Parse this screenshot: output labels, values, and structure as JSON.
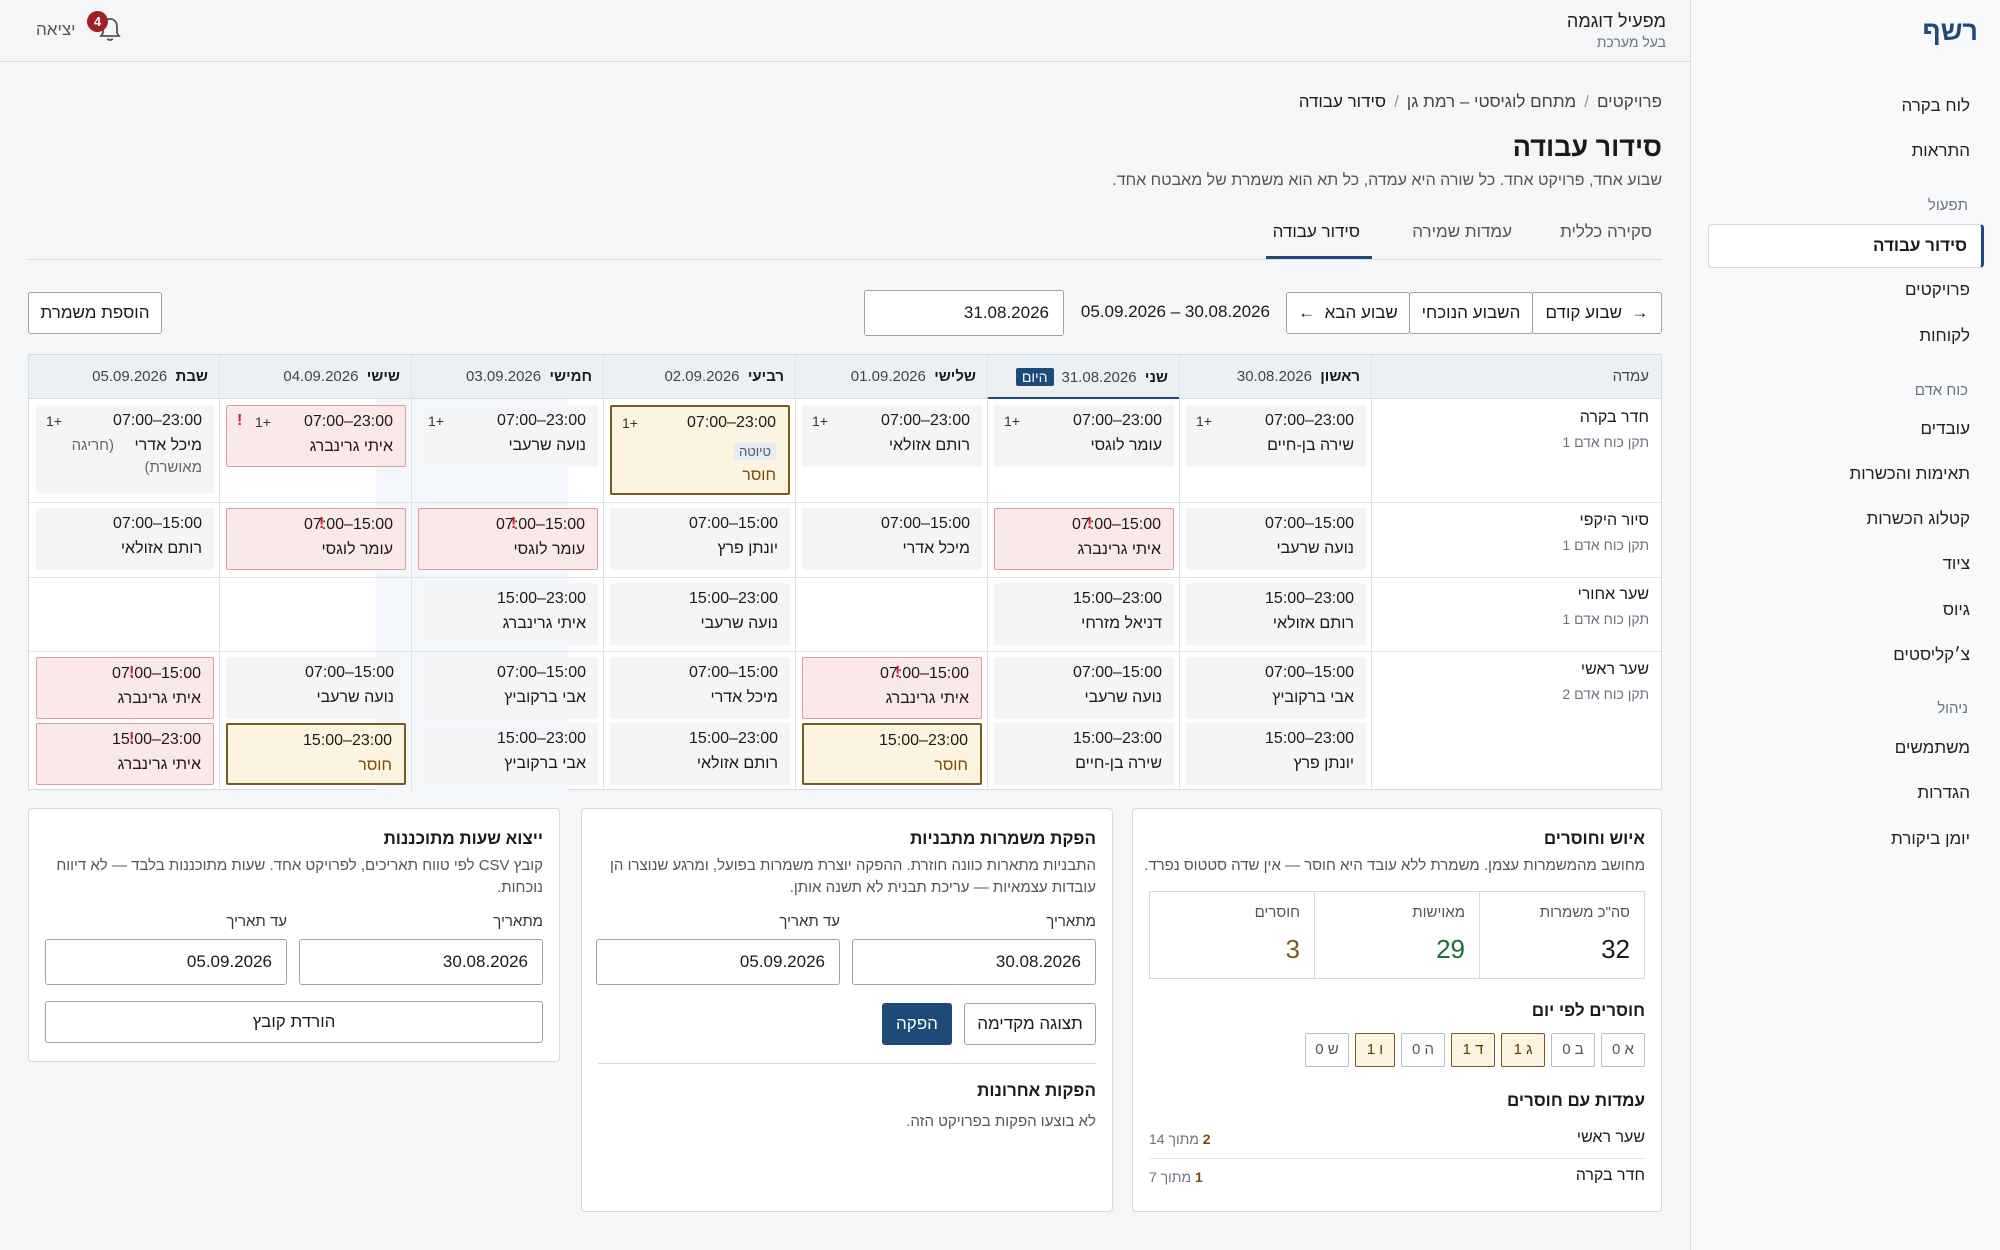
{
  "app": {
    "logo": "רשף"
  },
  "sidebar": {
    "top_items": [
      "לוח בקרה",
      "התראות"
    ],
    "groups": {
      "operations": "תפעול",
      "manpower": "כוח אדם",
      "management": "ניהול"
    },
    "operations_items": [
      "סידור עבודה",
      "פרויקטים",
      "לקוחות"
    ],
    "manpower_items": [
      "עובדים",
      "תאימות והכשרות",
      "קטלוג הכשרות",
      "ציוד",
      "גיוס",
      "צ׳קליסטים"
    ],
    "management_items": [
      "משתמשים",
      "הגדרות",
      "יומן ביקורת"
    ],
    "active_item": "סידור עבודה"
  },
  "header": {
    "user_name": "מפעיל דוגמה",
    "user_role": "בעל מערכת",
    "logout": "יציאה",
    "notification_count": "4"
  },
  "breadcrumb": {
    "items": [
      "פרויקטים",
      "מתחם לוגיסטי – רמת גן",
      "סידור עבודה"
    ],
    "separator": "/"
  },
  "page": {
    "title": "סידור עבודה",
    "subtitle": "שבוע אחד, פרויקט אחד. כל שורה היא עמדה, כל תא הוא משמרת של מאבטח אחד."
  },
  "tabs": [
    "סקירה כללית",
    "עמדות שמירה",
    "סידור עבודה"
  ],
  "toolbar": {
    "prev_week": "שבוע קודם",
    "current_week": "השבוע הנוכחי",
    "next_week": "שבוע הבא",
    "prev_arrow": "→",
    "next_arrow": "←",
    "range": "30.08.2026 – 05.09.2026",
    "date_value": "31.08.2026",
    "add_shift": "הוספת משמרת"
  },
  "schedule": {
    "station_header": "עמדה",
    "today_label": "היום",
    "days": [
      {
        "name": "ראשון",
        "date": "30.08.2026"
      },
      {
        "name": "שני",
        "date": "31.08.2026"
      },
      {
        "name": "שלישי",
        "date": "01.09.2026"
      },
      {
        "name": "רביעי",
        "date": "02.09.2026"
      },
      {
        "name": "חמישי",
        "date": "03.09.2026"
      },
      {
        "name": "שישי",
        "date": "04.09.2026"
      },
      {
        "name": "שבת",
        "date": "05.09.2026"
      }
    ],
    "stations": [
      {
        "name": "חדר בקרה",
        "req": "תקן כוח אדם 1"
      },
      {
        "name": "סיור היקפי",
        "req": "תקן כוח אדם 1"
      },
      {
        "name": "שער אחורי",
        "req": "תקן כוח אדם 1"
      },
      {
        "name": "שער ראשי",
        "req": "תקן כוח אדם 2"
      }
    ],
    "plus_one": "+1",
    "alert_mark": "!",
    "missing_label": "חוסר",
    "draft_label": "טיוטה",
    "cells": {
      "r0": [
        {
          "time": "07:00–23:00",
          "name": "שירה בן-חיים"
        },
        {
          "time": "07:00–23:00",
          "name": "עומר לוגסי"
        },
        {
          "time": "07:00–23:00",
          "name": "רותם אזולאי"
        },
        {
          "time": "07:00–23:00"
        },
        {
          "time": "07:00–23:00",
          "name": "נועה שרעבי"
        },
        {
          "time": "07:00–23:00",
          "name": "איתי גרינברג"
        },
        {
          "time": "07:00–23:00",
          "name": "מיכל אדרי",
          "note": "(חריגה",
          "note2": "מאושרת)"
        }
      ],
      "r1": [
        {
          "time": "07:00–15:00",
          "name": "נועה שרעבי"
        },
        {
          "time": "07:00–15:00",
          "name": "איתי גרינברג"
        },
        {
          "time": "07:00–15:00",
          "name": "מיכל אדרי"
        },
        {
          "time": "07:00–15:00",
          "name": "יונתן פרץ"
        },
        {
          "time": "07:00–15:00",
          "name": "עומר לוגסי"
        },
        {
          "time": "07:00–15:00",
          "name": "עומר לוגסי"
        },
        {
          "time": "07:00–15:00",
          "name": "רותם אזולאי"
        }
      ],
      "r2": [
        {
          "time": "15:00–23:00",
          "name": "רותם אזולאי"
        },
        {
          "time": "15:00–23:00",
          "name": "דניאל מזרחי"
        },
        {
          "time": "15:00–23:00",
          "name": "נועה שרעבי"
        },
        {
          "time": "15:00–23:00",
          "name": "איתי גרינברג"
        }
      ],
      "r3a": [
        {
          "time": "07:00–15:00",
          "name": "אבי ברקוביץ"
        },
        {
          "time": "07:00–15:00",
          "name": "נועה שרעבי"
        },
        {
          "time": "07:00–15:00",
          "name": "איתי גרינברג"
        },
        {
          "time": "07:00–15:00",
          "name": "מיכל אדרי"
        },
        {
          "time": "07:00–15:00",
          "name": "אבי ברקוביץ"
        },
        {
          "time": "07:00–15:00",
          "name": "נועה שרעבי"
        },
        {
          "time": "07:00–15:00",
          "name": "איתי גרינברג"
        }
      ],
      "r3b": [
        {
          "time": "15:00–23:00",
          "name": "יונתן פרץ"
        },
        {
          "time": "15:00–23:00",
          "name": "שירה בן-חיים"
        },
        {
          "time": "15:00–23:00"
        },
        {
          "time": "15:00–23:00",
          "name": "רותם אזולאי"
        },
        {
          "time": "15:00–23:00",
          "name": "אבי ברקוביץ"
        },
        {
          "time": "15:00–23:00"
        },
        {
          "time": "15:00–23:00",
          "name": "איתי גרינברג"
        }
      ]
    }
  },
  "coverage_panel": {
    "title": "איוש וחוסרים",
    "text": "מחושב מהמשמרות עצמן. משמרת ללא עובד היא חוסר — אין שדה סטטוס נפרד.",
    "total_label": "סה\"כ משמרות",
    "total_value": "32",
    "filled_label": "מאוישות",
    "filled_value": "29",
    "missing_label": "חוסרים",
    "missing_value": "3",
    "per_day_title": "חוסרים לפי יום",
    "per_day": [
      {
        "day": "א",
        "count": "0"
      },
      {
        "day": "ב",
        "count": "0"
      },
      {
        "day": "ג",
        "count": "1"
      },
      {
        "day": "ד",
        "count": "1"
      },
      {
        "day": "ה",
        "count": "0"
      },
      {
        "day": "ו",
        "count": "1"
      },
      {
        "day": "ש",
        "count": "0"
      }
    ],
    "stations_title": "עמדות עם חוסרים",
    "stations": [
      {
        "name": "שער ראשי",
        "count": "2",
        "of": "מתוך 14"
      },
      {
        "name": "חדר בקרה",
        "count": "1",
        "of": "מתוך 7"
      }
    ],
    "colors": {
      "missing": "#7a5a20",
      "filled": "#1d6b3a"
    }
  },
  "generate_panel": {
    "title": "הפקת משמרות מתבניות",
    "text1": "התבניות מתארות כוונה חוזרת. ההפקה יוצרת משמרות בפועל, ומרגע שנוצרו הן",
    "text2": "עובדות עצמאיות — עריכת תבנית לא תשנה אותן.",
    "from_label": "מתאריך",
    "to_label": "עד תאריך",
    "from_value": "30.08.2026",
    "to_value": "05.09.2026",
    "preview": "תצוגה מקדימה",
    "generate": "הפקה",
    "recent_title": "הפקות אחרונות",
    "recent_empty": "לא בוצעו הפקות בפרויקט הזה."
  },
  "export_panel": {
    "title": "ייצוא שעות מתוכננות",
    "text1": "קובץ CSV לפי טווח תאריכים, לפרויקט אחד. שעות מתוכננות בלבד — לא דיווח",
    "text2": "נוכחות.",
    "from_label": "מתאריך",
    "to_label": "עד תאריך",
    "from_value": "30.08.2026",
    "to_value": "05.09.2026",
    "download": "הורדת קובץ"
  }
}
